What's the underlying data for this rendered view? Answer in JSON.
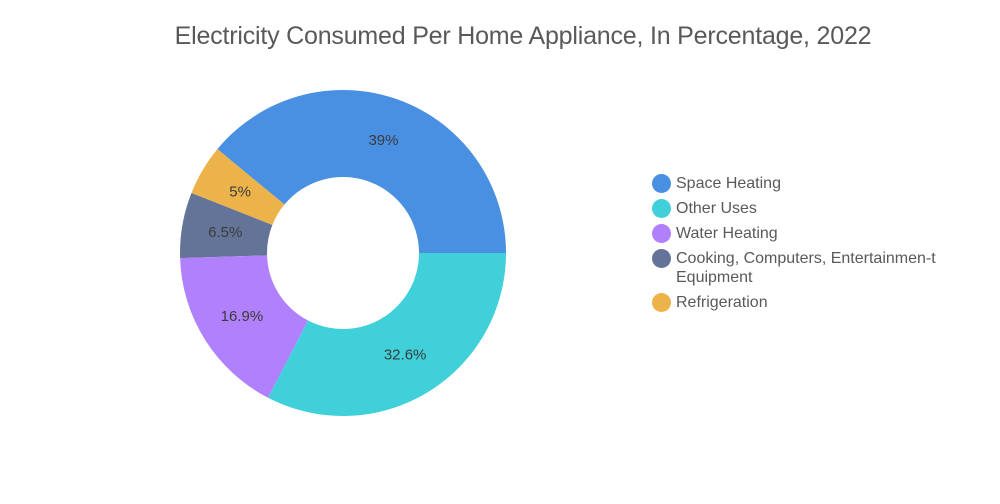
{
  "title": "Electricity Consumed Per Home Appliance, In Percentage, 2022",
  "chart_data": {
    "type": "pie",
    "subtype": "donut",
    "title": "Electricity Consumed Per Home Appliance, In Percentage, 2022",
    "legend_position": "right",
    "slices": [
      {
        "name": "Space Heating",
        "value": 39,
        "label": "39%",
        "color": "#4a90e2"
      },
      {
        "name": "Refrigeration",
        "value": 5,
        "label": "5%",
        "color": "#ecb34a"
      },
      {
        "name": "Cooking, Computers, Entertainmen-t Equipment",
        "value": 6.5,
        "label": "6.5%",
        "color": "#637498"
      },
      {
        "name": "Water Heating",
        "value": 16.9,
        "label": "16.9%",
        "color": "#b180fd"
      },
      {
        "name": "Other Uses",
        "value": 32.6,
        "label": "32.6%",
        "color": "#40d0d9"
      }
    ]
  },
  "legend": [
    {
      "label": "Space Heating",
      "color": "#4a90e2"
    },
    {
      "label": "Other Uses",
      "color": "#40d0d9"
    },
    {
      "label": "Water Heating",
      "color": "#b180fd"
    },
    {
      "label": "Cooking, Computers, Entertainmen-t Equipment",
      "color": "#637498"
    },
    {
      "label": "Refrigeration",
      "color": "#ecb34a"
    }
  ]
}
